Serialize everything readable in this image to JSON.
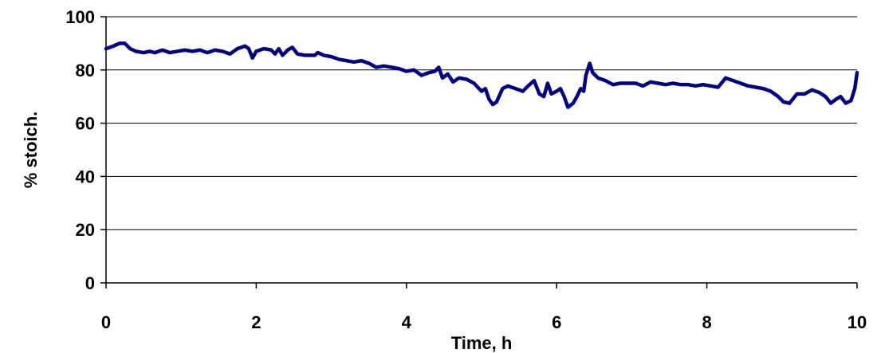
{
  "chart_data": {
    "type": "line",
    "title": "",
    "xlabel": "Time, h",
    "ylabel": "% stoich.",
    "xlim": [
      0,
      10
    ],
    "ylim": [
      0,
      100
    ],
    "xticks": [
      0,
      2,
      4,
      6,
      8,
      10
    ],
    "yticks": [
      0,
      20,
      40,
      60,
      80,
      100
    ],
    "grid": "horizontal major gridlines",
    "legend": "none",
    "series": [
      {
        "color": "#000080",
        "points": [
          [
            0.0,
            88
          ],
          [
            0.1,
            89
          ],
          [
            0.18,
            90
          ],
          [
            0.25,
            90
          ],
          [
            0.32,
            88
          ],
          [
            0.4,
            87
          ],
          [
            0.5,
            86.5
          ],
          [
            0.58,
            87
          ],
          [
            0.65,
            86.5
          ],
          [
            0.75,
            87.5
          ],
          [
            0.85,
            86.5
          ],
          [
            0.95,
            87
          ],
          [
            1.05,
            87.5
          ],
          [
            1.15,
            87
          ],
          [
            1.25,
            87.5
          ],
          [
            1.35,
            86.5
          ],
          [
            1.45,
            87.5
          ],
          [
            1.55,
            87
          ],
          [
            1.65,
            86
          ],
          [
            1.75,
            88
          ],
          [
            1.85,
            89
          ],
          [
            1.9,
            88
          ],
          [
            1.95,
            84.5
          ],
          [
            2.0,
            87
          ],
          [
            2.1,
            88
          ],
          [
            2.2,
            87.5
          ],
          [
            2.25,
            86
          ],
          [
            2.3,
            88
          ],
          [
            2.35,
            85.5
          ],
          [
            2.42,
            87.5
          ],
          [
            2.48,
            88.5
          ],
          [
            2.55,
            86
          ],
          [
            2.65,
            85.5
          ],
          [
            2.78,
            85.5
          ],
          [
            2.82,
            86.5
          ],
          [
            2.9,
            85.5
          ],
          [
            3.0,
            85
          ],
          [
            3.1,
            84
          ],
          [
            3.2,
            83.5
          ],
          [
            3.3,
            83
          ],
          [
            3.4,
            83.5
          ],
          [
            3.5,
            82.5
          ],
          [
            3.6,
            81
          ],
          [
            3.7,
            81.5
          ],
          [
            3.8,
            81
          ],
          [
            3.9,
            80.5
          ],
          [
            4.0,
            79.5
          ],
          [
            4.1,
            80
          ],
          [
            4.2,
            78
          ],
          [
            4.3,
            79
          ],
          [
            4.38,
            79.5
          ],
          [
            4.43,
            81
          ],
          [
            4.48,
            77
          ],
          [
            4.55,
            78.5
          ],
          [
            4.62,
            75.5
          ],
          [
            4.7,
            77
          ],
          [
            4.8,
            76.5
          ],
          [
            4.9,
            75
          ],
          [
            5.0,
            72
          ],
          [
            5.05,
            73
          ],
          [
            5.1,
            69
          ],
          [
            5.15,
            67
          ],
          [
            5.2,
            68
          ],
          [
            5.28,
            73
          ],
          [
            5.35,
            74
          ],
          [
            5.45,
            73
          ],
          [
            5.55,
            72
          ],
          [
            5.62,
            74
          ],
          [
            5.7,
            76
          ],
          [
            5.77,
            71
          ],
          [
            5.83,
            70
          ],
          [
            5.88,
            75
          ],
          [
            5.93,
            71
          ],
          [
            6.0,
            72
          ],
          [
            6.05,
            73
          ],
          [
            6.1,
            70
          ],
          [
            6.15,
            66
          ],
          [
            6.22,
            67.5
          ],
          [
            6.27,
            70
          ],
          [
            6.32,
            73
          ],
          [
            6.36,
            72
          ],
          [
            6.39,
            78
          ],
          [
            6.44,
            82.5
          ],
          [
            6.48,
            79
          ],
          [
            6.55,
            77
          ],
          [
            6.65,
            76
          ],
          [
            6.75,
            74.5
          ],
          [
            6.85,
            75
          ],
          [
            6.95,
            75
          ],
          [
            7.05,
            75
          ],
          [
            7.15,
            74
          ],
          [
            7.25,
            75.5
          ],
          [
            7.35,
            75
          ],
          [
            7.45,
            74.5
          ],
          [
            7.55,
            75
          ],
          [
            7.65,
            74.5
          ],
          [
            7.75,
            74.5
          ],
          [
            7.85,
            74
          ],
          [
            7.95,
            74.5
          ],
          [
            8.05,
            74
          ],
          [
            8.15,
            73.5
          ],
          [
            8.25,
            77
          ],
          [
            8.35,
            76
          ],
          [
            8.45,
            75
          ],
          [
            8.55,
            74
          ],
          [
            8.65,
            73.5
          ],
          [
            8.75,
            73
          ],
          [
            8.85,
            72
          ],
          [
            8.95,
            70
          ],
          [
            9.02,
            68
          ],
          [
            9.1,
            67.5
          ],
          [
            9.2,
            71
          ],
          [
            9.3,
            71
          ],
          [
            9.4,
            72.5
          ],
          [
            9.5,
            71.5
          ],
          [
            9.58,
            70
          ],
          [
            9.65,
            67.5
          ],
          [
            9.72,
            69
          ],
          [
            9.78,
            70
          ],
          [
            9.85,
            67.5
          ],
          [
            9.92,
            68.5
          ],
          [
            9.97,
            73
          ],
          [
            10.0,
            79
          ]
        ]
      }
    ]
  }
}
